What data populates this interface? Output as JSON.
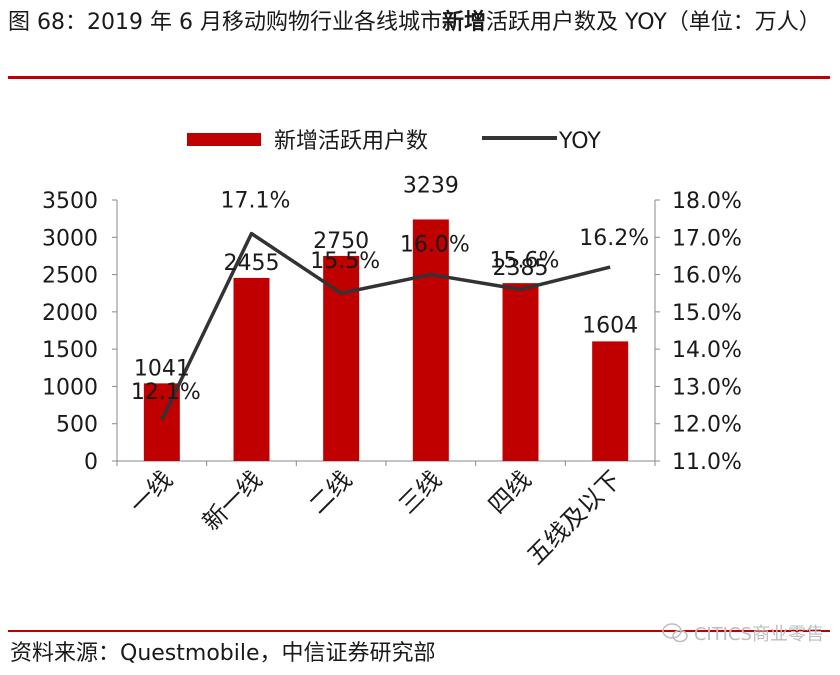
{
  "title": {
    "prefix": "图 68：2019 年 6 月移动购物行业各线城市",
    "emphasis": "新增",
    "suffix": "活跃用户数及 YOY（单位：万人）"
  },
  "source": "资料来源：Questmobile，中信证券研究部",
  "watermark": "CITICS商业零售",
  "colors": {
    "bar": "#c00000",
    "line": "#333333",
    "rule": "#c00000"
  },
  "chart_data": {
    "type": "bar",
    "categories": [
      "一线",
      "新一线",
      "二线",
      "三线",
      "四线",
      "五线及以下"
    ],
    "series": [
      {
        "name": "新增活跃用户数",
        "type": "bar",
        "axis": "left",
        "values": [
          1041,
          2455,
          2750,
          3239,
          2385,
          1604
        ],
        "labels": [
          "1041",
          "2455",
          "2750",
          "3239",
          "2385",
          "1604"
        ]
      },
      {
        "name": "YOY",
        "type": "line",
        "axis": "right",
        "values": [
          0.121,
          0.171,
          0.155,
          0.16,
          0.156,
          0.162
        ],
        "labels": [
          "12.1%",
          "17.1%",
          "15.5%",
          "16.0%",
          "15.6%",
          "16.2%"
        ]
      }
    ],
    "y_left": {
      "min": 0,
      "max": 3500,
      "ticks": [
        0,
        500,
        1000,
        1500,
        2000,
        2500,
        3000,
        3500
      ],
      "tick_labels": [
        "0",
        "500",
        "1000",
        "1500",
        "2000",
        "2500",
        "3000",
        "3500"
      ]
    },
    "y_right": {
      "min": 0.11,
      "max": 0.18,
      "ticks": [
        0.11,
        0.12,
        0.13,
        0.14,
        0.15,
        0.16,
        0.17,
        0.18
      ],
      "tick_labels": [
        "11.0%",
        "12.0%",
        "13.0%",
        "14.0%",
        "15.0%",
        "16.0%",
        "17.0%",
        "18.0%"
      ]
    },
    "grid": false,
    "legend": "top"
  }
}
